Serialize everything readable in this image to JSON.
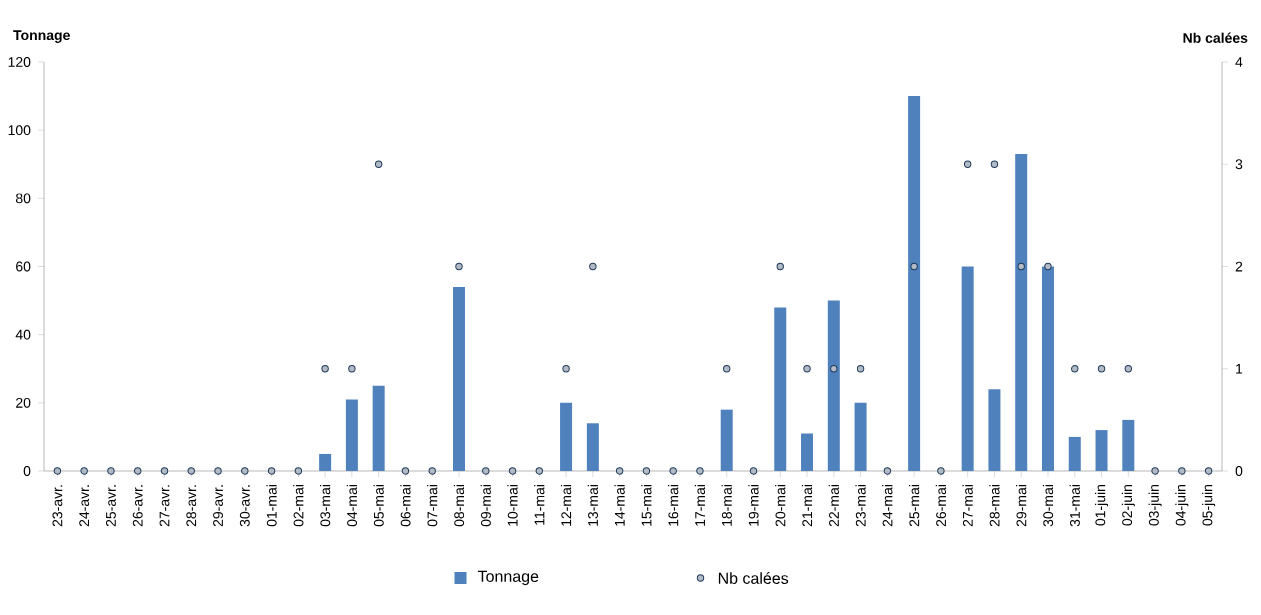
{
  "chart_data": {
    "type": "bar",
    "ylabel": "Tonnage",
    "y2label": "Nb calées",
    "categories": [
      "23-avr.",
      "24-avr.",
      "25-avr.",
      "26-avr.",
      "27-avr.",
      "28-avr.",
      "29-avr.",
      "30-avr.",
      "01-mai",
      "02-mai",
      "03-mai",
      "04-mai",
      "05-mai",
      "06-mai",
      "07-mai",
      "08-mai",
      "09-mai",
      "10-mai",
      "11-mai",
      "12-mai",
      "13-mai",
      "14-mai",
      "15-mai",
      "16-mai",
      "17-mai",
      "18-mai",
      "19-mai",
      "20-mai",
      "21-mai",
      "22-mai",
      "23-mai",
      "24-mai",
      "25-mai",
      "26-mai",
      "27-mai",
      "28-mai",
      "29-mai",
      "30-mai",
      "31-mai",
      "01-juin",
      "02-juin",
      "03-juin",
      "04-juin",
      "05-juin"
    ],
    "series": [
      {
        "name": "Tonnage",
        "color": "#4f81bd",
        "values": [
          0,
          0,
          0,
          0,
          0,
          0,
          0,
          0,
          0,
          0,
          5,
          21,
          25,
          0,
          0,
          54,
          0,
          0,
          0,
          20,
          14,
          0,
          0,
          0,
          0,
          18,
          0,
          48,
          11,
          50,
          20,
          0,
          110,
          0,
          60,
          24,
          93,
          60,
          10,
          12,
          15,
          0,
          0,
          0
        ]
      },
      {
        "name": "Nb calées",
        "type": "scatter",
        "axis": "y2",
        "marker": "circle",
        "color": "#1f3a5a",
        "values": [
          0,
          0,
          0,
          0,
          0,
          0,
          0,
          0,
          0,
          0,
          1,
          1,
          3,
          0,
          0,
          2,
          0,
          0,
          0,
          1,
          2,
          0,
          0,
          0,
          0,
          1,
          0,
          2,
          1,
          1,
          1,
          0,
          2,
          0,
          3,
          3,
          2,
          2,
          1,
          1,
          1,
          0,
          0,
          0
        ]
      }
    ],
    "ylim": [
      0,
      120
    ],
    "yticks": [
      0,
      20,
      40,
      60,
      80,
      100,
      120
    ],
    "y2lim": [
      0,
      4
    ],
    "y2ticks": [
      0,
      1,
      2,
      3,
      4
    ],
    "legend": "bottom"
  }
}
